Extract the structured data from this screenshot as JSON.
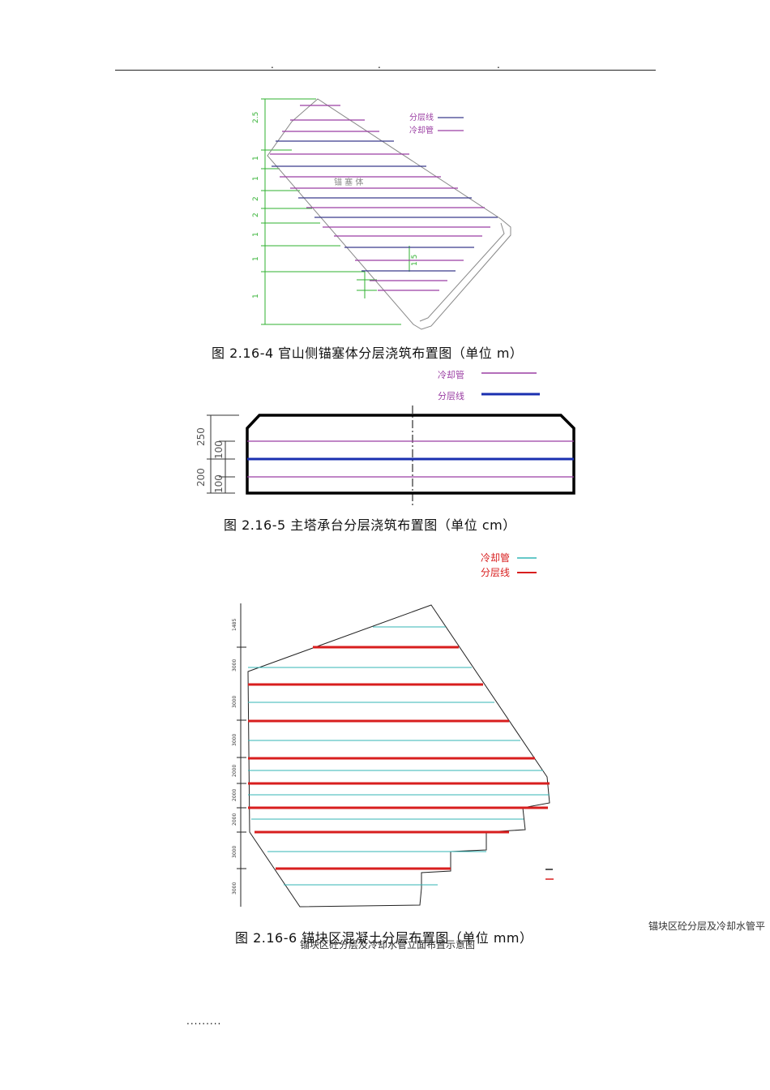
{
  "header": {
    "dots": [
      ".",
      ".",
      "."
    ]
  },
  "figure1": {
    "caption": "图 2.16-4 官山侧锚塞体分层浇筑布置图（单位 m）",
    "legend": [
      {
        "label": "分层线",
        "color": "#3a3a8c"
      },
      {
        "label": "冷却管",
        "color": "#9b3fa3"
      }
    ],
    "inner_labels": [
      "锚 塞 体"
    ],
    "dims_left": [
      "2.5",
      "1",
      "1",
      "2",
      "2",
      "1",
      "1",
      "1",
      "1.5"
    ]
  },
  "figure2": {
    "caption": "图 2.16-5 主塔承台分层浇筑布置图（单位 cm）",
    "legend": [
      {
        "label": "冷却管",
        "color": "#9b3fa3"
      },
      {
        "label": "分层线",
        "color": "#1a2fb0"
      }
    ],
    "dims_outer": [
      "250",
      "200"
    ],
    "dims_inner": [
      "100",
      "100"
    ]
  },
  "figure3": {
    "caption": "图 2.16-6  锚块区混凝土分层布置图（单位 mm）",
    "legend": [
      {
        "label": "冷却管",
        "color": "#33b5b5"
      },
      {
        "label": "分层线",
        "color": "#d81e1e"
      }
    ],
    "dims_left": [
      "1485",
      "3000",
      "3000",
      "3000",
      "2000",
      "2000",
      "2000",
      "3000",
      "3000"
    ],
    "overlay_left": "锚块区砼分层及冷却水管立面布置示意图",
    "overlay_right": "锚块区砼分层及冷却水管平"
  },
  "footer": {
    "dots": "........."
  }
}
